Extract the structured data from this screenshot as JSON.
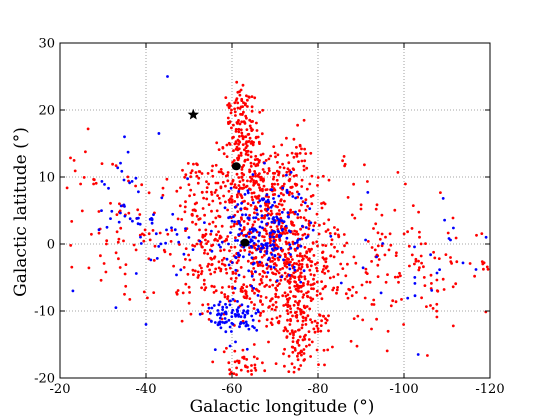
{
  "chart_data": {
    "type": "scatter",
    "title": "",
    "xlabel": "Galactic longitude (°)",
    "ylabel": "Galactic latitude (°)",
    "xlim": [
      -20,
      -120
    ],
    "ylim": [
      -20,
      30
    ],
    "x_reversed": true,
    "x_ticks": [
      -20,
      -40,
      -60,
      -80,
      -100,
      -120
    ],
    "y_ticks": [
      -20,
      -10,
      0,
      10,
      20,
      30
    ],
    "grid": true,
    "grid_style": "dotted",
    "series": [
      {
        "color": "#ff0000",
        "marker": "dot",
        "clusters": [
          {
            "center": [
              -62,
              17
            ],
            "spread": [
              2.0,
              2.6
            ],
            "count": 90
          },
          {
            "center": [
              -66,
              10
            ],
            "spread": [
              5.0,
              3.5
            ],
            "count": 220
          },
          {
            "center": [
              -68,
              3
            ],
            "spread": [
              8.0,
              4.0
            ],
            "count": 260
          },
          {
            "center": [
              -72,
              -3
            ],
            "spread": [
              5.0,
              4.0
            ],
            "count": 220
          },
          {
            "center": [
              -76,
              -11
            ],
            "spread": [
              3.0,
              4.5
            ],
            "count": 180
          },
          {
            "center": [
              -57,
              -4
            ],
            "spread": [
              6.0,
              4.0
            ],
            "count": 120
          },
          {
            "center": [
              -52,
              7
            ],
            "spread": [
              3.0,
              3.0
            ],
            "count": 60
          },
          {
            "center": [
              -39,
              1
            ],
            "spread": [
              10.0,
              4.0
            ],
            "count": 90
          },
          {
            "center": [
              -88,
              -2
            ],
            "spread": [
              10.0,
              6.0
            ],
            "count": 150
          },
          {
            "center": [
              -108,
              -4
            ],
            "spread": [
              8.0,
              3.5
            ],
            "count": 60
          },
          {
            "center": [
              -63,
              -18
            ],
            "spread": [
              3.0,
              1.5
            ],
            "count": 40
          },
          {
            "center": [
              -62,
              21.5
            ],
            "spread": [
              1.5,
              1.0
            ],
            "count": 25
          },
          {
            "center": [
              -75,
              15
            ],
            "spread": [
              1.2,
              2.5
            ],
            "count": 20
          },
          {
            "center": [
              -30,
              10
            ],
            "spread": [
              6.0,
              3.0
            ],
            "count": 20
          },
          {
            "center": [
              -65,
              -8
            ],
            "spread": [
              3.0,
              2.5
            ],
            "count": 40
          }
        ]
      },
      {
        "color": "#0000ff",
        "marker": "dot",
        "clusters": [
          {
            "center": [
              -68,
              2
            ],
            "spread": [
              5.0,
              3.5
            ],
            "count": 220
          },
          {
            "center": [
              -60,
              -11
            ],
            "spread": [
              3.0,
              1.8
            ],
            "count": 90
          },
          {
            "center": [
              -44,
              1.5
            ],
            "spread": [
              5.0,
              3.0
            ],
            "count": 35
          },
          {
            "center": [
              -34,
              7
            ],
            "spread": [
              3.0,
              4.0
            ],
            "count": 25
          },
          {
            "center": [
              -104,
              -2
            ],
            "spread": [
              8.0,
              5.0
            ],
            "count": 25
          }
        ],
        "points": [
          [
            -45,
            25
          ],
          [
            -35,
            16
          ],
          [
            -43,
            16.5
          ],
          [
            -23,
            -7
          ],
          [
            -33,
            -9.5
          ],
          [
            -40,
            -12
          ]
        ]
      }
    ],
    "markers": [
      {
        "shape": "star",
        "x": -51,
        "y": 19.3,
        "color": "#000000"
      },
      {
        "shape": "blob",
        "x": -61,
        "y": 11.6,
        "color": "#000000"
      },
      {
        "shape": "blob",
        "x": -63,
        "y": 0.2,
        "color": "#000000"
      }
    ]
  }
}
